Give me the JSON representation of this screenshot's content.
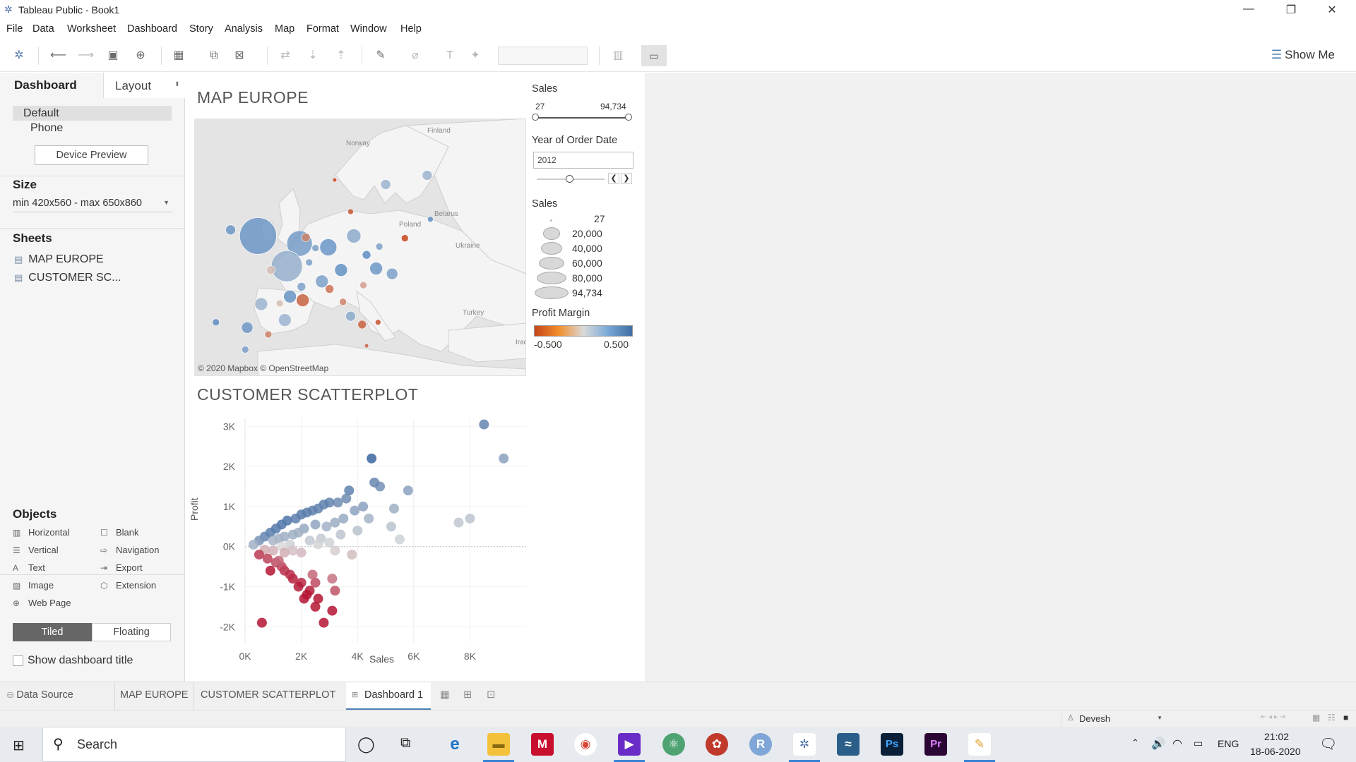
{
  "window": {
    "title": "Tableau Public - Book1"
  },
  "menu": [
    "File",
    "Data",
    "Worksheet",
    "Dashboard",
    "Story",
    "Analysis",
    "Map",
    "Format",
    "Window",
    "Help"
  ],
  "toolbar": {
    "show_me": "Show Me"
  },
  "left": {
    "tab_dashboard": "Dashboard",
    "tab_layout": "Layout",
    "device_default": "Default",
    "device_phone": "Phone",
    "device_preview": "Device Preview",
    "size_title": "Size",
    "size_value": "min 420x560 - max 650x860",
    "sheets_title": "Sheets",
    "sheets": [
      "MAP EUROPE",
      "CUSTOMER SC..."
    ],
    "objects_title": "Objects",
    "objects": [
      "Horizontal",
      "Blank",
      "Vertical",
      "Navigation",
      "Text",
      "Export",
      "Image",
      "Extension",
      "Web Page"
    ],
    "tiled": "Tiled",
    "floating": "Floating",
    "show_title": "Show dashboard title"
  },
  "map": {
    "title": "MAP EUROPE",
    "attribution": "© 2020 Mapbox © OpenStreetMap",
    "labels": [
      "Finland",
      "Norway",
      "Belarus",
      "Poland",
      "Ukraine",
      "Turkey",
      "Iraq"
    ]
  },
  "filters": {
    "sales_title": "Sales",
    "sales_min": "27",
    "sales_max": "94,734",
    "year_title": "Year of Order Date",
    "year_value": "2012",
    "size_legend_title": "Sales",
    "size_legend": [
      "27",
      "20,000",
      "40,000",
      "60,000",
      "80,000",
      "94,734"
    ],
    "profit_title": "Profit Margin",
    "profit_min": "-0.500",
    "profit_max": "0.500",
    "colors": {
      "negative": "#d2691e",
      "neutral": "#d9d9d9",
      "positive": "#4a7fb5"
    }
  },
  "scatter": {
    "title": "CUSTOMER SCATTERPLOT",
    "xlabel": "Sales",
    "ylabel": "Profit",
    "xticks": [
      "0K",
      "2K",
      "4K",
      "6K",
      "8K"
    ],
    "yticks": [
      "3K",
      "2K",
      "1K",
      "0K",
      "-1K",
      "-2K"
    ]
  },
  "chart_data": {
    "type": "scatter",
    "xlabel": "Sales",
    "ylabel": "Profit",
    "xlim": [
      0,
      10000
    ],
    "ylim": [
      -2400,
      3200
    ],
    "points": [
      [
        8500,
        3050,
        0.36
      ],
      [
        9200,
        2200,
        0.24
      ],
      [
        4500,
        2200,
        0.49
      ],
      [
        5800,
        1400,
        0.24
      ],
      [
        4800,
        1500,
        0.31
      ],
      [
        4600,
        1600,
        0.35
      ],
      [
        3700,
        1400,
        0.38
      ],
      [
        5300,
        950,
        0.18
      ],
      [
        7600,
        600,
        0.08
      ],
      [
        8000,
        700,
        0.09
      ],
      [
        5200,
        500,
        0.1
      ],
      [
        5500,
        180,
        0.03
      ],
      [
        3600,
        1200,
        0.33
      ],
      [
        3300,
        1100,
        0.33
      ],
      [
        3000,
        1100,
        0.37
      ],
      [
        2800,
        1050,
        0.38
      ],
      [
        2600,
        950,
        0.37
      ],
      [
        2400,
        900,
        0.38
      ],
      [
        2200,
        850,
        0.39
      ],
      [
        2000,
        800,
        0.4
      ],
      [
        1800,
        700,
        0.39
      ],
      [
        1500,
        650,
        0.43
      ],
      [
        1300,
        550,
        0.42
      ],
      [
        1100,
        450,
        0.41
      ],
      [
        900,
        350,
        0.39
      ],
      [
        700,
        250,
        0.36
      ],
      [
        500,
        150,
        0.3
      ],
      [
        300,
        50,
        0.17
      ],
      [
        4200,
        1000,
        0.24
      ],
      [
        3900,
        900,
        0.23
      ],
      [
        4400,
        700,
        0.16
      ],
      [
        3500,
        700,
        0.2
      ],
      [
        3200,
        600,
        0.19
      ],
      [
        2900,
        500,
        0.17
      ],
      [
        2500,
        550,
        0.22
      ],
      [
        2100,
        450,
        0.21
      ],
      [
        1900,
        350,
        0.18
      ],
      [
        1700,
        300,
        0.18
      ],
      [
        1400,
        250,
        0.18
      ],
      [
        1200,
        200,
        0.17
      ],
      [
        1000,
        150,
        0.15
      ],
      [
        4000,
        400,
        0.1
      ],
      [
        3400,
        300,
        0.09
      ],
      [
        2700,
        200,
        0.07
      ],
      [
        2300,
        150,
        0.07
      ],
      [
        1600,
        50,
        0.03
      ],
      [
        1300,
        0,
        0.0
      ],
      [
        2600,
        60,
        0.02
      ],
      [
        3000,
        100,
        0.03
      ],
      [
        3800,
        -200,
        -0.05
      ],
      [
        3200,
        -100,
        -0.03
      ],
      [
        2000,
        -150,
        -0.08
      ],
      [
        1700,
        -100,
        -0.06
      ],
      [
        1400,
        -150,
        -0.11
      ],
      [
        1000,
        -100,
        -0.1
      ],
      [
        700,
        -80,
        -0.11
      ],
      [
        500,
        -200,
        -0.4
      ],
      [
        800,
        -300,
        -0.38
      ],
      [
        1100,
        -400,
        -0.36
      ],
      [
        1400,
        -600,
        -0.43
      ],
      [
        1700,
        -800,
        -0.47
      ],
      [
        2000,
        -900,
        -0.45
      ],
      [
        1900,
        -1000,
        -0.48
      ],
      [
        1600,
        -700,
        -0.44
      ],
      [
        1300,
        -500,
        -0.38
      ],
      [
        2300,
        -1100,
        -0.48
      ],
      [
        2500,
        -900,
        -0.36
      ],
      [
        2400,
        -700,
        -0.29
      ],
      [
        3100,
        -1600,
        -0.52
      ],
      [
        2600,
        -1300,
        -0.5
      ],
      [
        2800,
        -1900,
        -0.68
      ],
      [
        3100,
        -800,
        -0.26
      ],
      [
        3200,
        -1100,
        -0.34
      ],
      [
        900,
        -600,
        -0.67
      ],
      [
        600,
        -1900,
        -3.0
      ],
      [
        2500,
        -1500,
        -0.6
      ],
      [
        2100,
        -1300,
        -0.62
      ],
      [
        2200,
        -1200,
        -0.55
      ],
      [
        1200,
        -350,
        -0.29
      ],
      [
        3800,
        -200,
        -0.05
      ]
    ]
  },
  "map_points": [
    {
      "lon": -2.0,
      "lat": 52.5,
      "r": 26,
      "m": 0.35
    },
    {
      "lon": 4.5,
      "lat": 51.5,
      "r": 18,
      "m": 0.32
    },
    {
      "lon": 2.5,
      "lat": 48.5,
      "r": 22,
      "m": 0.22
    },
    {
      "lon": 9.0,
      "lat": 51.0,
      "r": 12,
      "m": 0.36
    },
    {
      "lon": 13.0,
      "lat": 52.5,
      "r": 10,
      "m": 0.25
    },
    {
      "lon": 18.0,
      "lat": 59.3,
      "r": 7,
      "m": 0.2
    },
    {
      "lon": 24.5,
      "lat": 60.5,
      "r": 7,
      "m": 0.2
    },
    {
      "lon": 8.0,
      "lat": 46.5,
      "r": 9,
      "m": 0.3
    },
    {
      "lon": 11.0,
      "lat": 48.0,
      "r": 9,
      "m": 0.38
    },
    {
      "lon": 16.5,
      "lat": 48.2,
      "r": 9,
      "m": 0.35
    },
    {
      "lon": 3.0,
      "lat": 44.5,
      "r": 9,
      "m": 0.37
    },
    {
      "lon": 5.0,
      "lat": 44.0,
      "r": 9,
      "m": -0.4
    },
    {
      "lon": -1.5,
      "lat": 43.5,
      "r": 9,
      "m": 0.2
    },
    {
      "lon": -3.7,
      "lat": 40.4,
      "r": 8,
      "m": 0.35
    },
    {
      "lon": 2.2,
      "lat": 41.4,
      "r": 9,
      "m": 0.2
    },
    {
      "lon": -8.6,
      "lat": 41.1,
      "r": 5,
      "m": 0.4
    },
    {
      "lon": 12.5,
      "lat": 41.9,
      "r": 7,
      "m": 0.25
    },
    {
      "lon": 9.2,
      "lat": 45.5,
      "r": 6,
      "m": -0.35
    },
    {
      "lon": 14.3,
      "lat": 40.8,
      "r": 6,
      "m": -0.4
    },
    {
      "lon": 0.0,
      "lat": 48.0,
      "r": 6,
      "m": -0.1
    },
    {
      "lon": -6.3,
      "lat": 53.3,
      "r": 7,
      "m": 0.35
    },
    {
      "lon": 10.0,
      "lat": 59.9,
      "r": 3,
      "m": -0.5
    },
    {
      "lon": 12.5,
      "lat": 55.7,
      "r": 4,
      "m": -0.45
    },
    {
      "lon": 5.5,
      "lat": 52.3,
      "r": 6,
      "m": -0.3
    },
    {
      "lon": 7.0,
      "lat": 50.9,
      "r": 5,
      "m": 0.3
    },
    {
      "lon": 15.0,
      "lat": 50.0,
      "r": 6,
      "m": 0.4
    },
    {
      "lon": 19.0,
      "lat": 47.5,
      "r": 8,
      "m": 0.3
    },
    {
      "lon": 6.0,
      "lat": 49.0,
      "r": 5,
      "m": 0.3
    },
    {
      "lon": -4.0,
      "lat": 37.5,
      "r": 5,
      "m": 0.3
    },
    {
      "lon": -0.4,
      "lat": 39.5,
      "r": 5,
      "m": -0.3
    },
    {
      "lon": 14.5,
      "lat": 46.0,
      "r": 5,
      "m": -0.2
    },
    {
      "lon": 11.3,
      "lat": 43.8,
      "r": 5,
      "m": -0.3
    },
    {
      "lon": 16.8,
      "lat": 41.1,
      "r": 4,
      "m": -0.45
    },
    {
      "lon": 15.0,
      "lat": 38.0,
      "r": 3,
      "m": -0.4
    },
    {
      "lon": 4.8,
      "lat": 45.8,
      "r": 6,
      "m": 0.3
    },
    {
      "lon": 1.4,
      "lat": 43.6,
      "r": 5,
      "m": -0.1
    },
    {
      "lon": 17.0,
      "lat": 51.1,
      "r": 5,
      "m": 0.3
    },
    {
      "lon": 21.0,
      "lat": 52.2,
      "r": 5,
      "m": -0.5
    },
    {
      "lon": 25.0,
      "lat": 54.7,
      "r": 4,
      "m": 0.4
    }
  ],
  "bottom": {
    "data_source": "Data Source",
    "tabs": [
      "MAP EUROPE",
      "CUSTOMER SCATTERPLOT",
      "Dashboard 1"
    ],
    "user": "Devesh"
  },
  "taskbar": {
    "search": "Search",
    "lang": "ENG",
    "time": "21:02",
    "date": "18-06-2020"
  }
}
